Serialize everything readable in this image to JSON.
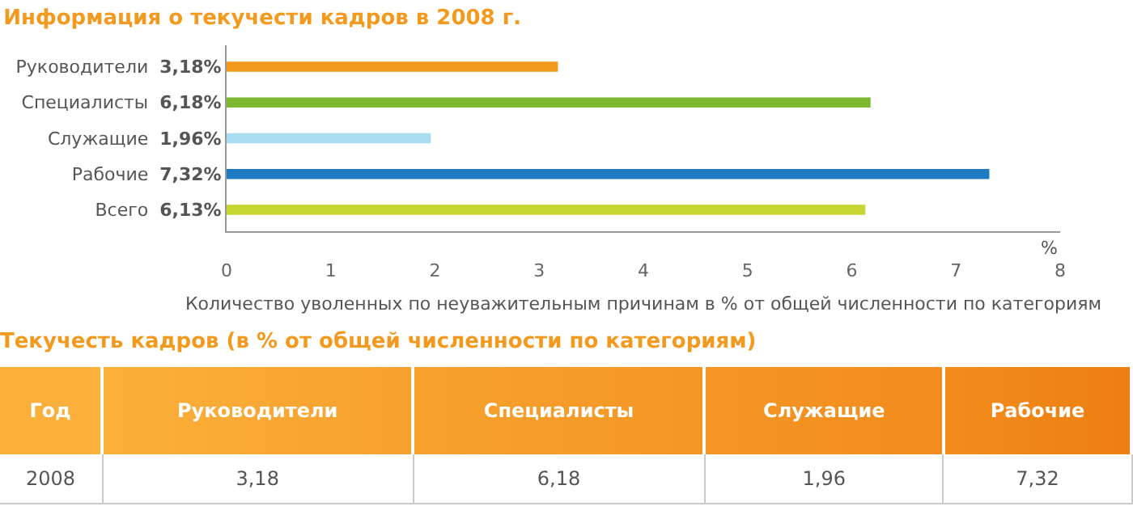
{
  "chart_data": [
    {
      "type": "bar",
      "orientation": "horizontal",
      "title": "Информация о текучести кадров в 2008 г.",
      "xlabel": "Количество уволенных по неуважительным причинам в % от общей численности по категориям",
      "annotations": [
        "%"
      ],
      "categories": [
        "Руководители",
        "Специалисты",
        "Служащие",
        "Рабочие",
        "Всего"
      ],
      "values": [
        3.18,
        6.18,
        1.96,
        7.32,
        6.13
      ],
      "value_labels": [
        "3,18%",
        "6,18%",
        "1,96%",
        "7,32%",
        "6,13%"
      ],
      "colors": [
        "#f39a1e",
        "#7cb82f",
        "#a8dcf0",
        "#1f7bbf",
        "#c6d531"
      ],
      "xlim": [
        0,
        8
      ],
      "xticks": [
        0,
        1,
        2,
        3,
        4,
        5,
        6,
        7,
        8
      ],
      "grid": false
    },
    {
      "type": "other",
      "title": "Текучесть кадров (в % от общей численности по категориям)",
      "categories": [
        "Руководители",
        "Специалисты",
        "Служащие",
        "Рабочие"
      ],
      "value_labels": [
        "3,18",
        "6,18",
        "1,96",
        "7,32"
      ],
      "annotations": [
        "Год",
        "2008"
      ]
    }
  ]
}
